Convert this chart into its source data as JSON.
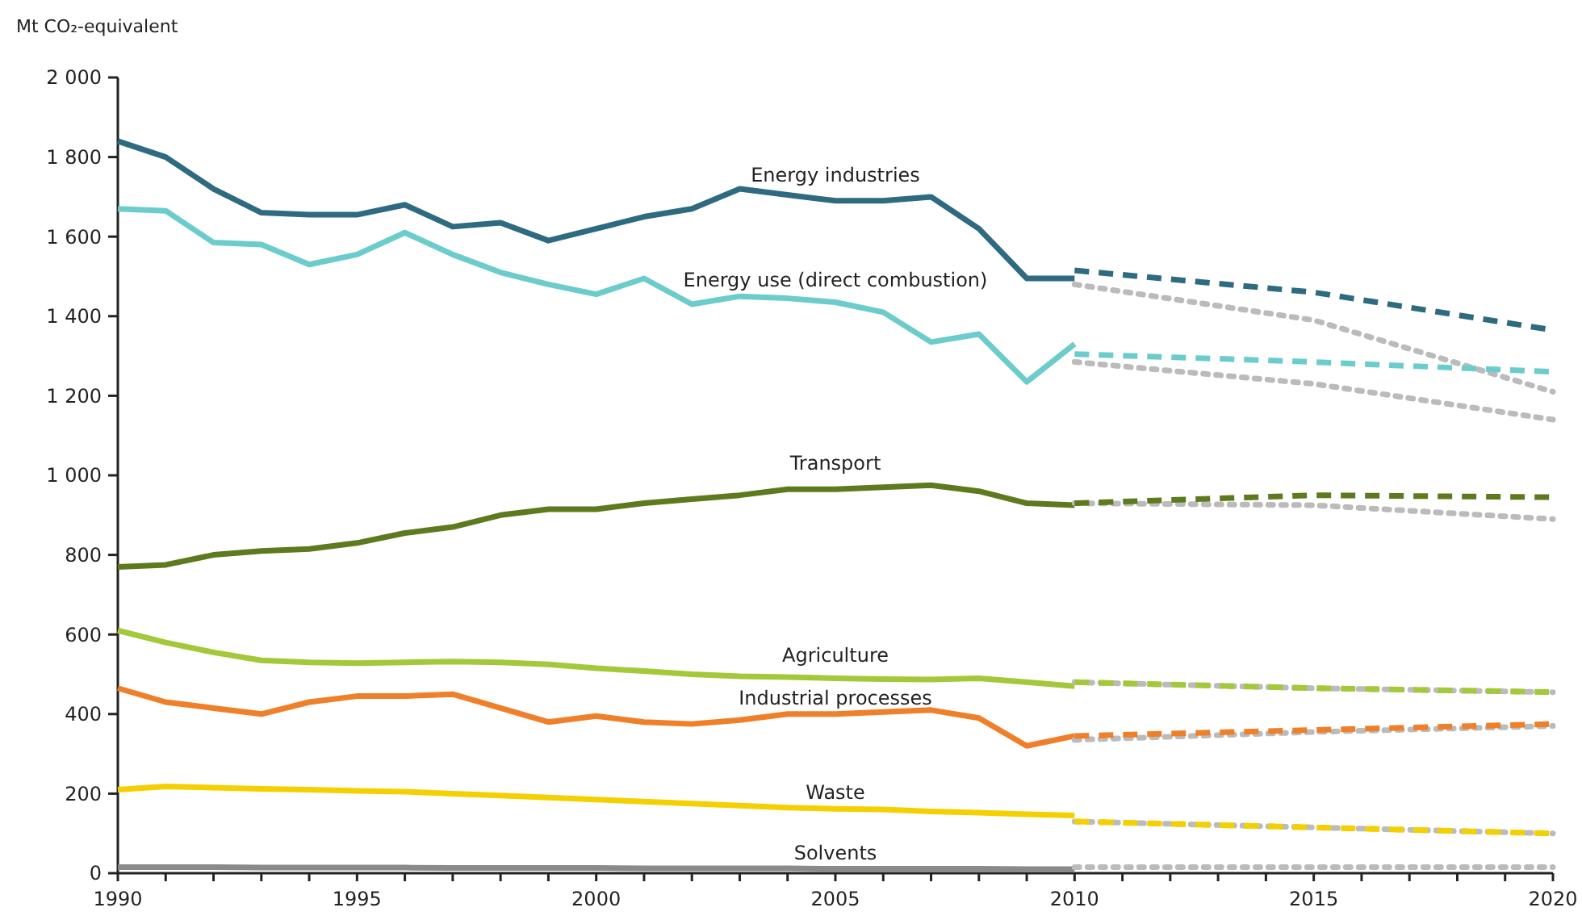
{
  "chart_data": {
    "type": "line",
    "ylabel": "Mt CO₂-equivalent",
    "xlim": [
      1990,
      2020
    ],
    "ylim": [
      0,
      2000
    ],
    "xticks": [
      1990,
      {
        "value": 1991,
        "label": null
      },
      {
        "value": 1992,
        "label": null
      },
      {
        "value": 1993,
        "label": null
      },
      {
        "value": 1994,
        "label": null
      },
      1995,
      {
        "value": 1996,
        "label": null
      },
      {
        "value": 1997,
        "label": null
      },
      {
        "value": 1998,
        "label": null
      },
      {
        "value": 1999,
        "label": null
      },
      2000,
      {
        "value": 2001,
        "label": null
      },
      {
        "value": 2002,
        "label": null
      },
      {
        "value": 2003,
        "label": null
      },
      {
        "value": 2004,
        "label": null
      },
      2005,
      {
        "value": 2006,
        "label": null
      },
      {
        "value": 2007,
        "label": null
      },
      {
        "value": 2008,
        "label": null
      },
      {
        "value": 2009,
        "label": null
      },
      2010,
      {
        "value": 2011,
        "label": null
      },
      {
        "value": 2012,
        "label": null
      },
      {
        "value": 2013,
        "label": null
      },
      {
        "value": 2014,
        "label": null
      },
      2015,
      {
        "value": 2016,
        "label": null
      },
      {
        "value": 2017,
        "label": null
      },
      {
        "value": 2018,
        "label": null
      },
      {
        "value": 2019,
        "label": null
      },
      2020
    ],
    "yticks": [
      0,
      200,
      400,
      600,
      800,
      {
        "value": 1000,
        "label": "1 000"
      },
      {
        "value": 1200,
        "label": "1 200"
      },
      {
        "value": 1400,
        "label": "1 400"
      },
      {
        "value": 1600,
        "label": "1 600"
      },
      {
        "value": 1800,
        "label": "1 800"
      },
      {
        "value": 2000,
        "label": "2 000"
      }
    ],
    "grid": false,
    "marker": "none",
    "x": [
      1990,
      1991,
      1992,
      1993,
      1994,
      1995,
      1996,
      1997,
      1998,
      1999,
      2000,
      2001,
      2002,
      2003,
      2004,
      2005,
      2006,
      2007,
      2008,
      2009,
      2010
    ],
    "series": [
      {
        "name": "Energy industries",
        "color": "#2e6b80",
        "line_style": "solid",
        "values": [
          1840,
          1800,
          1720,
          1660,
          1655,
          1655,
          1680,
          1625,
          1635,
          1590,
          1620,
          1650,
          1670,
          1720,
          1705,
          1690,
          1690,
          1700,
          1620,
          1495,
          1495
        ]
      },
      {
        "name": "Energy use (direct combustion)",
        "color": "#6ccccc",
        "line_style": "solid",
        "values": [
          1670,
          1665,
          1585,
          1580,
          1530,
          1555,
          1610,
          1555,
          1510,
          1480,
          1455,
          1495,
          1430,
          1450,
          1445,
          1435,
          1410,
          1335,
          1355,
          1235,
          1330
        ]
      },
      {
        "name": "Transport",
        "color": "#5e7a1e",
        "line_style": "solid",
        "values": [
          770,
          775,
          800,
          810,
          815,
          830,
          855,
          870,
          900,
          915,
          915,
          930,
          940,
          950,
          965,
          965,
          970,
          975,
          960,
          930,
          925
        ]
      },
      {
        "name": "Agriculture",
        "color": "#a3c93a",
        "line_style": "solid",
        "values": [
          610,
          580,
          555,
          535,
          530,
          528,
          530,
          532,
          530,
          525,
          515,
          508,
          500,
          495,
          493,
          490,
          488,
          487,
          490,
          480,
          470
        ]
      },
      {
        "name": "Industrial processes",
        "color": "#f07f2a",
        "line_style": "solid",
        "values": [
          465,
          430,
          415,
          400,
          430,
          445,
          445,
          450,
          415,
          380,
          395,
          380,
          375,
          385,
          400,
          400,
          405,
          410,
          390,
          320,
          345
        ]
      },
      {
        "name": "Waste",
        "color": "#f5d000",
        "line_style": "solid",
        "values": [
          210,
          218,
          215,
          212,
          210,
          207,
          205,
          200,
          195,
          190,
          185,
          180,
          175,
          170,
          165,
          162,
          160,
          155,
          152,
          148,
          145
        ]
      },
      {
        "name": "Solvents",
        "color": "#8a8a8a",
        "line_style": "solid",
        "values": [
          15,
          15,
          15,
          14,
          14,
          14,
          14,
          13,
          13,
          13,
          13,
          12,
          12,
          12,
          12,
          11,
          11,
          11,
          11,
          10,
          10
        ]
      },
      {
        "color": "#bbbbbb",
        "line_style": "dotted",
        "x": [
          2010,
          2015,
          2020
        ],
        "values": [
          1480,
          1390,
          1210
        ]
      },
      {
        "color": "#bbbbbb",
        "line_style": "dotted",
        "x": [
          2010,
          2015,
          2020
        ],
        "values": [
          1285,
          1230,
          1140
        ]
      },
      {
        "color": "#bbbbbb",
        "line_style": "dotted",
        "x": [
          2010,
          2015,
          2020
        ],
        "values": [
          930,
          925,
          890
        ]
      },
      {
        "color": "#bbbbbb",
        "line_style": "dotted",
        "x": [
          2010,
          2015,
          2020
        ],
        "values": [
          480,
          465,
          455
        ]
      },
      {
        "color": "#bbbbbb",
        "line_style": "dotted",
        "x": [
          2010,
          2015,
          2020
        ],
        "values": [
          335,
          355,
          370
        ]
      },
      {
        "color": "#bbbbbb",
        "line_style": "dotted",
        "x": [
          2010,
          2015,
          2020
        ],
        "values": [
          130,
          115,
          100
        ]
      },
      {
        "color": "#bbbbbb",
        "line_style": "dotted",
        "x": [
          2010,
          2015,
          2020
        ],
        "values": [
          15,
          15,
          15
        ]
      },
      {
        "color": "#2e6b80",
        "line_style": "dashed",
        "x": [
          2010,
          2015,
          2020
        ],
        "values": [
          1515,
          1460,
          1365
        ]
      },
      {
        "color": "#6ccccc",
        "line_style": "dashed",
        "x": [
          2010,
          2015,
          2020
        ],
        "values": [
          1305,
          1285,
          1260
        ]
      },
      {
        "color": "#5e7a1e",
        "line_style": "dashed",
        "x": [
          2010,
          2015,
          2020
        ],
        "values": [
          930,
          950,
          945
        ]
      },
      {
        "color": "#a3c93a",
        "line_style": "dashed",
        "x": [
          2010,
          2015,
          2020
        ],
        "values": [
          480,
          465,
          455
        ]
      },
      {
        "color": "#f07f2a",
        "line_style": "dashed",
        "x": [
          2010,
          2015,
          2020
        ],
        "values": [
          345,
          360,
          375
        ]
      },
      {
        "color": "#f5d000",
        "line_style": "dashed",
        "x": [
          2010,
          2015,
          2020
        ],
        "values": [
          130,
          115,
          100
        ]
      }
    ]
  }
}
